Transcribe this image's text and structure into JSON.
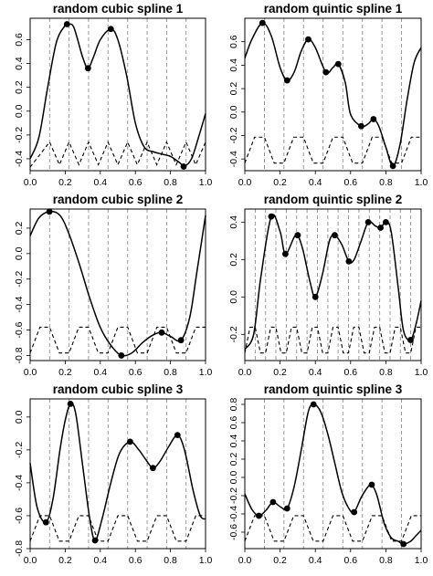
{
  "chart_data": [
    {
      "type": "line",
      "title": "random cubic spline 1",
      "xlim": [
        0,
        1
      ],
      "ylim": [
        -0.5,
        0.78
      ],
      "x_ticks": [
        0.0,
        0.2,
        0.4,
        0.6,
        0.8,
        1.0
      ],
      "x_tick_labels": [
        "0.0",
        "0.2",
        "0.4",
        "0.6",
        "0.8",
        "1.0"
      ],
      "y_ticks": [
        -0.4,
        -0.2,
        0.0,
        0.2,
        0.4,
        0.6
      ],
      "y_tick_labels": [
        "-0.4",
        "-0.2",
        "0.0",
        "0.2",
        "0.4",
        "0.6"
      ],
      "knots": [
        0.111,
        0.222,
        0.333,
        0.444,
        0.556,
        0.667,
        0.778,
        0.889
      ],
      "spline_x": [
        0.0,
        0.05,
        0.1,
        0.15,
        0.2,
        0.22,
        0.25,
        0.3,
        0.33,
        0.36,
        0.4,
        0.46,
        0.5,
        0.55,
        0.6,
        0.65,
        0.7,
        0.75,
        0.8,
        0.85,
        0.88,
        0.92,
        0.96,
        1.0
      ],
      "spline_y": [
        -0.4,
        -0.22,
        0.2,
        0.58,
        0.72,
        0.73,
        0.7,
        0.45,
        0.36,
        0.45,
        0.6,
        0.69,
        0.6,
        0.3,
        -0.1,
        -0.3,
        -0.34,
        -0.36,
        -0.38,
        -0.43,
        -0.46,
        -0.4,
        -0.22,
        -0.02
      ],
      "markers": [
        {
          "x": 0.21,
          "y": 0.73
        },
        {
          "x": 0.33,
          "y": 0.36
        },
        {
          "x": 0.46,
          "y": 0.69
        },
        {
          "x": 0.875,
          "y": -0.465
        }
      ],
      "basis_x": [
        0.0,
        0.111,
        0.167,
        0.222,
        0.278,
        0.333,
        0.389,
        0.444,
        0.5,
        0.556,
        0.611,
        0.667,
        0.722,
        0.778,
        0.833,
        0.889,
        0.944,
        1.0
      ],
      "basis_y": [
        -0.47,
        -0.26,
        -0.45,
        -0.26,
        -0.45,
        -0.26,
        -0.45,
        -0.26,
        -0.45,
        -0.26,
        -0.45,
        -0.26,
        -0.45,
        -0.26,
        -0.45,
        -0.26,
        -0.45,
        -0.26
      ]
    },
    {
      "type": "line",
      "title": "random quintic spline 1",
      "xlim": [
        0,
        1
      ],
      "ylim": [
        -0.5,
        0.8
      ],
      "x_ticks": [
        0.0,
        0.2,
        0.4,
        0.6,
        0.8,
        1.0
      ],
      "x_tick_labels": [
        "0.0",
        "0.2",
        "0.4",
        "0.6",
        "0.8",
        "1.0"
      ],
      "y_ticks": [
        -0.4,
        -0.2,
        0.0,
        0.2,
        0.4,
        0.6
      ],
      "y_tick_labels": [
        "-0.4",
        "-0.2",
        "0.0",
        "0.2",
        "0.4",
        "0.6"
      ],
      "knots": [
        0.111,
        0.222,
        0.333,
        0.444,
        0.556,
        0.667,
        0.778,
        0.889
      ],
      "spline_x": [
        0.0,
        0.04,
        0.1,
        0.15,
        0.2,
        0.24,
        0.28,
        0.32,
        0.36,
        0.4,
        0.46,
        0.5,
        0.53,
        0.57,
        0.6,
        0.66,
        0.7,
        0.73,
        0.76,
        0.8,
        0.84,
        0.88,
        0.92,
        0.96,
        1.0
      ],
      "spline_y": [
        0.46,
        0.62,
        0.76,
        0.65,
        0.38,
        0.27,
        0.34,
        0.52,
        0.62,
        0.55,
        0.34,
        0.38,
        0.41,
        0.25,
        -0.02,
        -0.12,
        -0.1,
        -0.06,
        -0.12,
        -0.3,
        -0.46,
        -0.28,
        0.1,
        0.42,
        0.55
      ]
    },
    {
      "type": "line",
      "title": "random cubic spline 2",
      "xlim": [
        0,
        1
      ],
      "ylim": [
        -0.84,
        0.35
      ],
      "x_ticks": [
        0.0,
        0.2,
        0.4,
        0.6,
        0.8,
        1.0
      ],
      "x_tick_labels": [
        "0.0",
        "0.2",
        "0.4",
        "0.6",
        "0.8",
        "1.0"
      ],
      "y_ticks": [
        -0.8,
        -0.6,
        -0.4,
        -0.2,
        0.0,
        0.2
      ],
      "y_tick_labels": [
        "-0.8",
        "-0.6",
        "-0.4",
        "-0.2",
        "0.0",
        "0.2"
      ],
      "knots": [
        0.111,
        0.222,
        0.333,
        0.444,
        0.556,
        0.667,
        0.778,
        0.889
      ],
      "spline_x": [
        0.0,
        0.05,
        0.11,
        0.17,
        0.22,
        0.28,
        0.34,
        0.4,
        0.46,
        0.52,
        0.58,
        0.64,
        0.7,
        0.75,
        0.8,
        0.86,
        0.91,
        0.95,
        1.0
      ],
      "spline_y": [
        0.14,
        0.28,
        0.33,
        0.3,
        0.16,
        -0.08,
        -0.35,
        -0.58,
        -0.72,
        -0.8,
        -0.78,
        -0.7,
        -0.64,
        -0.62,
        -0.65,
        -0.68,
        -0.5,
        -0.15,
        0.3
      ]
    },
    {
      "type": "line",
      "title": "random quintic spline 2",
      "xlim": [
        0,
        1
      ],
      "ylim": [
        -0.34,
        0.47
      ],
      "x_ticks": [
        0.0,
        0.2,
        0.4,
        0.6,
        0.8,
        1.0
      ],
      "x_tick_labels": [
        "0.0",
        "0.2",
        "0.4",
        "0.6",
        "0.8",
        "1.0"
      ],
      "y_ticks": [
        -0.2,
        0.0,
        0.2,
        0.4
      ],
      "y_tick_labels": [
        "-0.2",
        "0.0",
        "0.2",
        "0.4"
      ],
      "knots": [
        0.059,
        0.118,
        0.176,
        0.235,
        0.294,
        0.353,
        0.412,
        0.471,
        0.529,
        0.588,
        0.647,
        0.706,
        0.765,
        0.824,
        0.882,
        0.941
      ],
      "spline_x": [
        0.0,
        0.05,
        0.09,
        0.15,
        0.2,
        0.23,
        0.28,
        0.3,
        0.33,
        0.37,
        0.4,
        0.44,
        0.48,
        0.51,
        0.55,
        0.59,
        0.62,
        0.66,
        0.7,
        0.74,
        0.77,
        0.8,
        0.83,
        0.87,
        0.9,
        0.94,
        0.97,
        1.0
      ],
      "spline_y": [
        -0.28,
        -0.2,
        0.1,
        0.43,
        0.35,
        0.23,
        0.32,
        0.33,
        0.25,
        0.08,
        0.0,
        0.12,
        0.3,
        0.33,
        0.28,
        0.19,
        0.2,
        0.3,
        0.4,
        0.38,
        0.37,
        0.4,
        0.35,
        0.05,
        -0.18,
        -0.23,
        -0.15,
        -0.02
      ]
    },
    {
      "type": "line",
      "title": "random cubic spline 3",
      "xlim": [
        0,
        1
      ],
      "ylim": [
        -0.8,
        0.11
      ],
      "x_ticks": [
        0.0,
        0.2,
        0.4,
        0.6,
        0.8,
        1.0
      ],
      "x_tick_labels": [
        "0.0",
        "0.2",
        "0.4",
        "0.6",
        "0.8",
        "1.0"
      ],
      "y_ticks": [
        -0.8,
        -0.6,
        -0.4,
        -0.2,
        0.0
      ],
      "y_tick_labels": [
        "-0.8",
        "-0.6",
        "-0.4",
        "-0.2",
        "0.0"
      ],
      "knots": [
        0.111,
        0.222,
        0.333,
        0.444,
        0.556,
        0.667,
        0.778,
        0.889
      ],
      "spline_x": [
        0.0,
        0.04,
        0.09,
        0.13,
        0.17,
        0.2,
        0.23,
        0.26,
        0.3,
        0.34,
        0.37,
        0.41,
        0.46,
        0.51,
        0.57,
        0.62,
        0.66,
        0.7,
        0.74,
        0.79,
        0.84,
        0.88,
        0.93,
        0.97,
        1.0
      ],
      "spline_y": [
        -0.28,
        -0.55,
        -0.64,
        -0.5,
        -0.2,
        -0.02,
        0.08,
        0.02,
        -0.3,
        -0.62,
        -0.75,
        -0.62,
        -0.4,
        -0.22,
        -0.15,
        -0.2,
        -0.26,
        -0.31,
        -0.27,
        -0.18,
        -0.11,
        -0.2,
        -0.45,
        -0.6,
        -0.62
      ]
    },
    {
      "type": "line",
      "title": "random quintic spline 3",
      "xlim": [
        0,
        1
      ],
      "ylim": [
        -0.78,
        0.86
      ],
      "x_ticks": [
        0.0,
        0.2,
        0.4,
        0.6,
        0.8,
        1.0
      ],
      "x_tick_labels": [
        "0.0",
        "0.2",
        "0.4",
        "0.6",
        "0.8",
        "1.0"
      ],
      "y_ticks": [
        -0.6,
        -0.4,
        -0.2,
        0.0,
        0.2,
        0.4,
        0.6,
        0.8
      ],
      "y_tick_labels": [
        "-0.6",
        "-0.4",
        "-0.2",
        "0.0",
        "0.2",
        "0.4",
        "0.6",
        "0.8"
      ],
      "knots": [
        0.111,
        0.222,
        0.333,
        0.444,
        0.556,
        0.667,
        0.778,
        0.889
      ],
      "spline_x": [
        0.0,
        0.04,
        0.08,
        0.12,
        0.16,
        0.2,
        0.24,
        0.28,
        0.32,
        0.36,
        0.39,
        0.43,
        0.47,
        0.51,
        0.55,
        0.59,
        0.62,
        0.66,
        0.7,
        0.72,
        0.75,
        0.79,
        0.83,
        0.87,
        0.9,
        0.94,
        0.97,
        1.0
      ],
      "spline_y": [
        -0.18,
        -0.35,
        -0.42,
        -0.36,
        -0.27,
        -0.32,
        -0.34,
        -0.1,
        0.3,
        0.72,
        0.8,
        0.72,
        0.48,
        0.16,
        -0.16,
        -0.34,
        -0.38,
        -0.22,
        -0.1,
        -0.08,
        -0.2,
        -0.5,
        -0.66,
        -0.7,
        -0.73,
        -0.7,
        -0.64,
        -0.58
      ]
    }
  ]
}
